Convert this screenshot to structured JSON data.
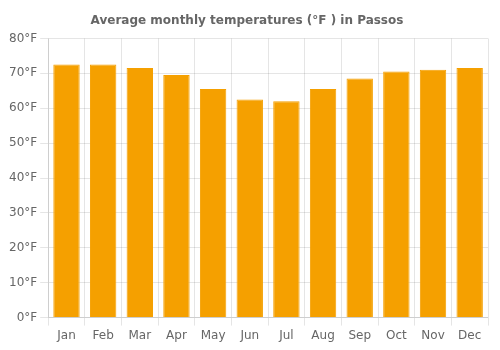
{
  "chart_data": {
    "type": "bar",
    "title": "Average monthly temperatures (°F ) in Passos",
    "categories": [
      "Jan",
      "Feb",
      "Mar",
      "Apr",
      "May",
      "Jun",
      "Jul",
      "Aug",
      "Sep",
      "Oct",
      "Nov",
      "Dec"
    ],
    "values": [
      72.5,
      72.5,
      71.5,
      69.5,
      65.5,
      62.5,
      62.0,
      65.5,
      68.5,
      70.5,
      71.0,
      71.5
    ],
    "color": "#F5A000",
    "ylim": [
      0,
      80
    ],
    "yticks": [
      {
        "value": 0,
        "label": "0°F"
      },
      {
        "value": 10,
        "label": "10°F"
      },
      {
        "value": 20,
        "label": "20°F"
      },
      {
        "value": 30,
        "label": "30°F"
      },
      {
        "value": 40,
        "label": "40°F"
      },
      {
        "value": 50,
        "label": "50°F"
      },
      {
        "value": 60,
        "label": "60°F"
      },
      {
        "value": 70,
        "label": "70°F"
      },
      {
        "value": 80,
        "label": "80°F"
      }
    ],
    "grid": true
  }
}
